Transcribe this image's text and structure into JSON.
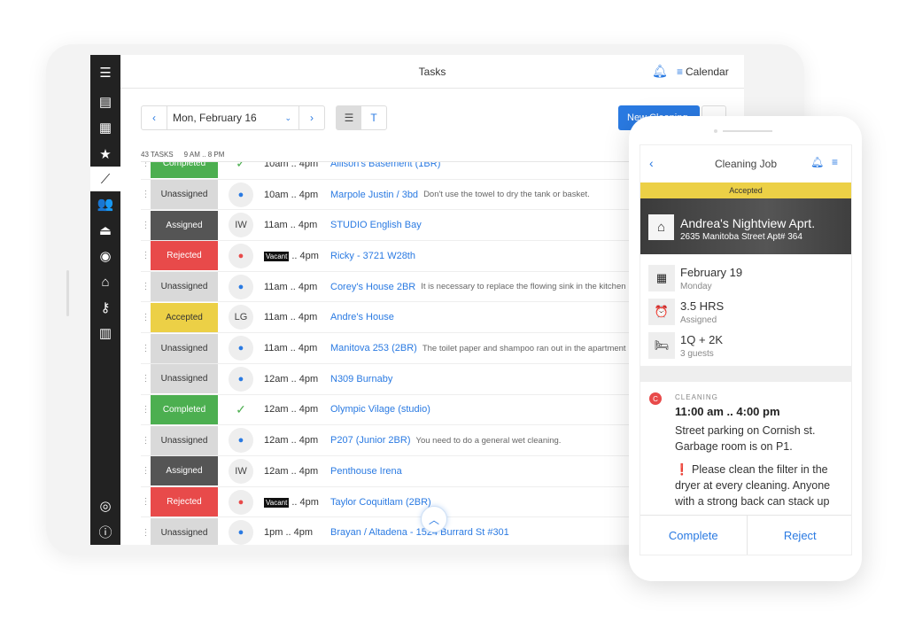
{
  "app": {
    "title": "Tasks",
    "calendar_label": "Calendar"
  },
  "sidebar": {
    "icons": [
      "menu-icon",
      "chat-icon",
      "calendar-icon",
      "star-icon",
      "broom-icon",
      "people-icon",
      "service-bell-icon",
      "user-circle-icon",
      "home-icon",
      "key-icon",
      "bar-chart-icon"
    ],
    "bottom_icons": [
      "lifebuoy-icon",
      "info-icon"
    ],
    "active": "broom-icon"
  },
  "toolbar": {
    "date": "Mon, February 16",
    "list_view": "☰",
    "timeline_view": "T",
    "new_button": "New Cleaning"
  },
  "meta": {
    "tasks": "43 TASKS",
    "hours": "9 AM .. 8 PM"
  },
  "colors": {
    "accent": "#2a7ae2",
    "completed": "#4caf50",
    "unassigned": "#d9d9d9",
    "assigned": "#555555",
    "rejected": "#e84a4a",
    "accepted": "#ecd046"
  },
  "tasks": [
    {
      "status": "Completed",
      "avatar": "check",
      "time": "10am .. 4pm",
      "name": "Allison's Basement (1BR)",
      "note": ""
    },
    {
      "status": "Unassigned",
      "avatar": "person",
      "time": "10am .. 4pm",
      "name": "Marpole Justin / 3bd",
      "note": "Don't use the towel to dry the tank or basket."
    },
    {
      "status": "Assigned",
      "avatar": "IW",
      "time": "11am .. 4pm",
      "name": "STUDIO English Bay",
      "note": ""
    },
    {
      "status": "Rejected",
      "avatar": "person-red",
      "time": "Vacant .. 4pm",
      "name": "Ricky - 3721 W28th",
      "note": ""
    },
    {
      "status": "Unassigned",
      "avatar": "person",
      "time": "11am .. 4pm",
      "name": "Corey's House 2BR",
      "note": "It is necessary to replace the flowing sink in the kitchen"
    },
    {
      "status": "Accepted",
      "avatar": "LG",
      "time": "11am .. 4pm",
      "name": "Andre's House",
      "note": ""
    },
    {
      "status": "Unassigned",
      "avatar": "person",
      "time": "11am .. 4pm",
      "name": "Manitova 253 (2BR)",
      "note": "The toilet paper and shampoo ran out in the apartment"
    },
    {
      "status": "Unassigned",
      "avatar": "person",
      "time": "12am .. 4pm",
      "name": "N309 Burnaby",
      "note": ""
    },
    {
      "status": "Completed",
      "avatar": "check",
      "time": "12am .. 4pm",
      "name": "Olympic Vilage (studio)",
      "note": ""
    },
    {
      "status": "Unassigned",
      "avatar": "person",
      "time": "12am .. 4pm",
      "name": "P207 (Junior 2BR)",
      "note": "You need to do a general wet cleaning."
    },
    {
      "status": "Assigned",
      "avatar": "IW",
      "time": "12am .. 4pm",
      "name": "Penthouse Irena",
      "note": ""
    },
    {
      "status": "Rejected",
      "avatar": "person-red",
      "time": "Vacant .. 4pm",
      "name": "Taylor Coquitlam (2BR)",
      "note": ""
    },
    {
      "status": "Unassigned",
      "avatar": "person",
      "time": "1pm .. 4pm",
      "name": "Brayan / Altadena - 1524 Burrard St #301",
      "note": ""
    }
  ],
  "phone": {
    "title": "Cleaning Job",
    "status": "Accepted",
    "property_name": "Andrea's Nightview Aprt.",
    "address": "2635 Manitoba Street Apt# 364",
    "date": "February 19",
    "weekday": "Monday",
    "hours": "3.5 HRS",
    "hours_sub": "Assigned",
    "beds": "1Q + 2K",
    "guests": "3 guests",
    "type_badge": "C",
    "type": "CLEANING",
    "time_range": "11:00 am .. 4:00 pm",
    "note1": "Street parking on Cornish st. Garbage room is on P1.",
    "note2": "❗ Please  clean the filter in the dryer at every cleaning. Anyone with a strong back can stack up",
    "complete": "Complete",
    "reject": "Reject"
  }
}
